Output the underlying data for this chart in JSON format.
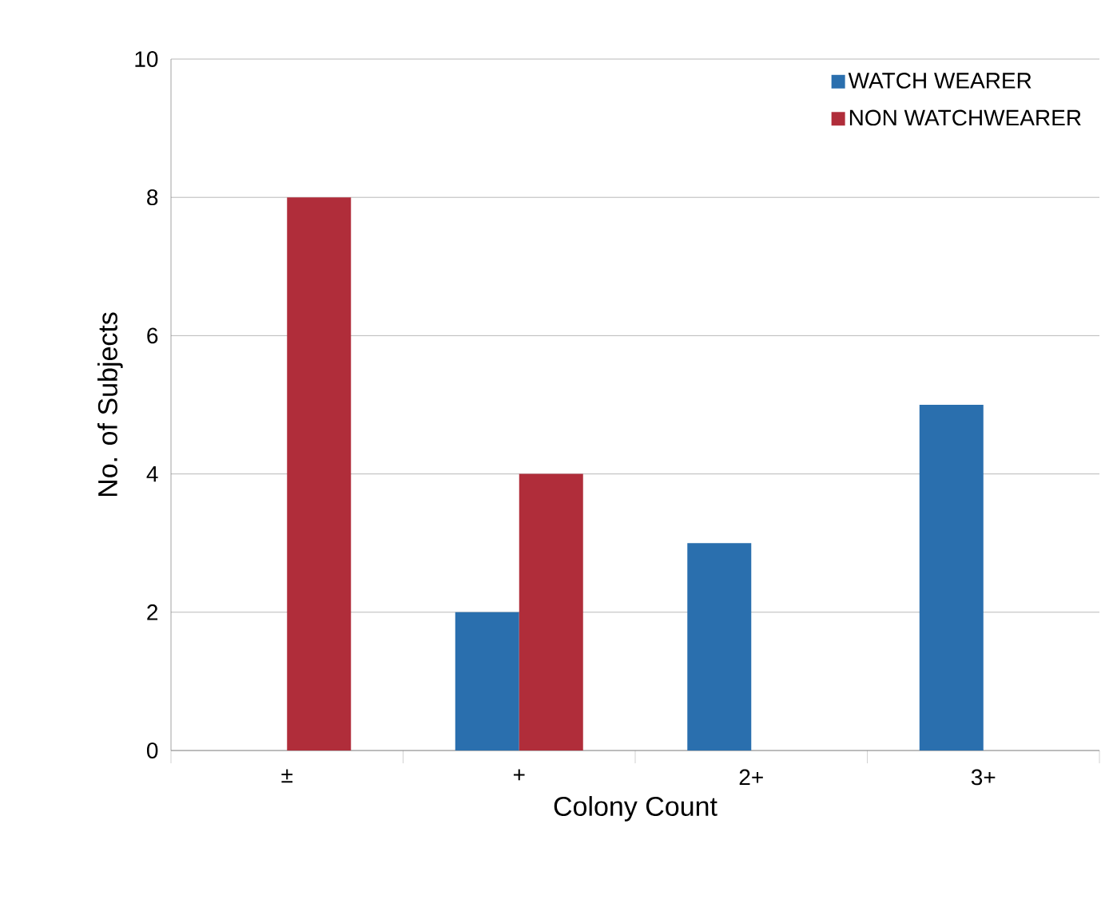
{
  "chart_data": {
    "type": "bar",
    "xlabel": "Colony Count",
    "ylabel": "No. of Subjects",
    "categories": [
      "±",
      "+",
      "2+",
      "3+"
    ],
    "series": [
      {
        "name": "WATCH WEARER",
        "color": "#2a6fae",
        "values": [
          0,
          2,
          3,
          5
        ]
      },
      {
        "name": "NON WATCHWEARER",
        "color": "#b02d3a",
        "values": [
          8,
          4,
          0,
          0
        ]
      }
    ],
    "ylim": [
      0,
      10
    ],
    "yticks": [
      0,
      2,
      4,
      6,
      8,
      10
    ],
    "grid": "y",
    "legend": "top right"
  }
}
